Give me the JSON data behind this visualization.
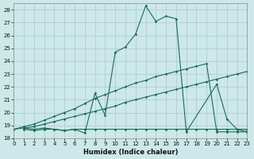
{
  "xlabel": "Humidex (Indice chaleur)",
  "bg_color": "#cce8e8",
  "grid_color": "#afc8c8",
  "line_color": "#1a6b5a",
  "xlim": [
    0,
    23
  ],
  "ylim": [
    18,
    28.5
  ],
  "yticks": [
    18,
    19,
    20,
    21,
    22,
    23,
    24,
    25,
    26,
    27,
    28
  ],
  "xticks": [
    0,
    1,
    2,
    3,
    4,
    5,
    6,
    7,
    8,
    9,
    10,
    11,
    12,
    13,
    14,
    15,
    16,
    17,
    18,
    19,
    20,
    21,
    22,
    23
  ],
  "curve1_x": [
    1,
    2,
    3,
    4,
    5,
    6,
    7,
    8,
    9,
    10,
    11,
    12,
    13,
    14,
    15,
    16,
    17,
    20,
    21,
    22,
    23
  ],
  "curve1_y": [
    18.8,
    18.7,
    18.8,
    18.7,
    18.6,
    18.7,
    18.4,
    21.5,
    19.8,
    24.7,
    25.1,
    26.1,
    28.3,
    27.1,
    27.5,
    27.3,
    18.5,
    22.2,
    19.5,
    18.7,
    18.5
  ],
  "curve2_x": [
    1,
    2,
    3,
    4,
    5,
    6,
    7,
    8,
    9,
    10,
    11,
    12,
    13,
    14,
    15,
    16,
    17,
    18,
    19,
    20,
    21,
    22,
    23
  ],
  "curve2_y": [
    18.7,
    18.6,
    18.7,
    18.7,
    18.6,
    18.7,
    18.7,
    18.7,
    18.7,
    18.7,
    18.7,
    18.7,
    18.7,
    18.7,
    18.7,
    18.7,
    18.7,
    18.7,
    18.7,
    18.7,
    18.7,
    18.7,
    18.7
  ],
  "curve3_x": [
    0,
    1,
    2,
    3,
    4,
    5,
    6,
    7,
    8,
    9,
    10,
    11,
    12,
    13,
    14,
    15,
    16,
    17,
    18,
    19,
    20,
    21,
    22,
    23
  ],
  "curve3_y": [
    18.7,
    18.8,
    18.9,
    19.1,
    19.3,
    19.5,
    19.7,
    19.9,
    20.1,
    20.3,
    20.5,
    20.8,
    21.0,
    21.2,
    21.4,
    21.6,
    21.8,
    22.0,
    22.2,
    22.4,
    22.6,
    22.8,
    23.0,
    23.2
  ],
  "curve4_x": [
    0,
    1,
    2,
    3,
    4,
    5,
    6,
    7,
    8,
    9,
    10,
    11,
    12,
    13,
    14,
    15,
    16,
    17,
    18,
    19,
    20,
    21,
    22,
    23
  ],
  "curve4_y": [
    18.7,
    18.9,
    19.1,
    19.4,
    19.7,
    20.0,
    20.3,
    20.7,
    21.1,
    21.4,
    21.7,
    22.0,
    22.3,
    22.5,
    22.8,
    23.0,
    23.2,
    23.4,
    23.6,
    23.8,
    18.5,
    18.5,
    18.5,
    18.5
  ]
}
